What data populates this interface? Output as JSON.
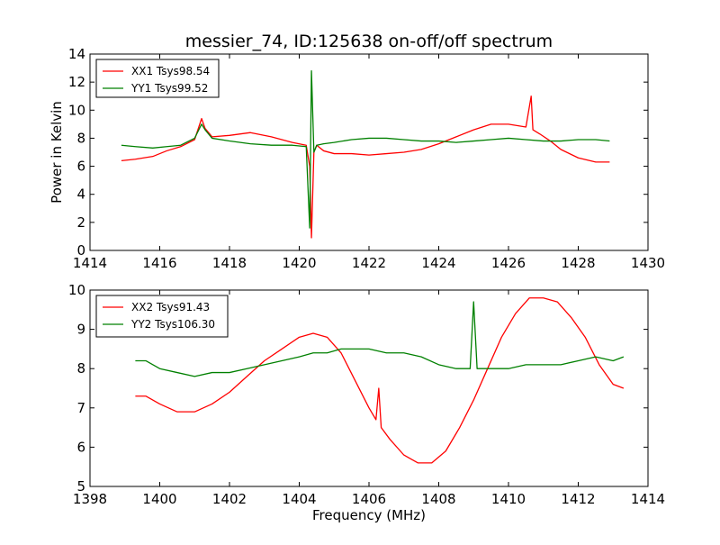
{
  "chart_data": [
    {
      "type": "line",
      "title": "messier_74, ID:125638 on-off/off spectrum",
      "xlabel": "",
      "ylabel": "Power in Kelvin",
      "xlim": [
        1414,
        1430
      ],
      "ylim": [
        0,
        14
      ],
      "xticks": [
        1414,
        1416,
        1418,
        1420,
        1422,
        1424,
        1426,
        1428,
        1430
      ],
      "yticks": [
        0,
        2,
        4,
        6,
        8,
        10,
        12,
        14
      ],
      "grid": false,
      "legend": "top-left",
      "series": [
        {
          "name": "XX1 Tsys98.54",
          "color": "#ff0000",
          "x": [
            1414.9,
            1415.3,
            1415.8,
            1416.2,
            1416.6,
            1417.0,
            1417.2,
            1417.3,
            1417.5,
            1418.0,
            1418.6,
            1419.2,
            1419.8,
            1420.2,
            1420.3,
            1420.35,
            1420.42,
            1420.5,
            1420.7,
            1421.0,
            1421.5,
            1422.0,
            1422.5,
            1423.0,
            1423.5,
            1424.0,
            1424.5,
            1425.0,
            1425.5,
            1426.0,
            1426.5,
            1426.65,
            1426.7,
            1426.9,
            1427.2,
            1427.5,
            1428.0,
            1428.5,
            1428.9
          ],
          "y": [
            6.4,
            6.5,
            6.7,
            7.1,
            7.4,
            7.9,
            9.4,
            8.7,
            8.1,
            8.2,
            8.4,
            8.1,
            7.7,
            7.5,
            6.0,
            0.9,
            7.0,
            7.5,
            7.1,
            6.9,
            6.9,
            6.8,
            6.9,
            7.0,
            7.2,
            7.6,
            8.1,
            8.6,
            9.0,
            9.0,
            8.8,
            11.0,
            8.6,
            8.3,
            7.8,
            7.2,
            6.6,
            6.3,
            6.3
          ]
        },
        {
          "name": "YY1 Tsys99.52",
          "color": "#008000",
          "x": [
            1414.9,
            1415.3,
            1415.8,
            1416.2,
            1416.6,
            1417.0,
            1417.2,
            1417.3,
            1417.5,
            1418.0,
            1418.6,
            1419.2,
            1419.8,
            1420.2,
            1420.3,
            1420.35,
            1420.42,
            1420.5,
            1420.7,
            1421.0,
            1421.5,
            1422.0,
            1422.5,
            1423.0,
            1423.5,
            1424.0,
            1424.5,
            1425.0,
            1425.5,
            1426.0,
            1426.5,
            1427.0,
            1427.5,
            1428.0,
            1428.5,
            1428.9
          ],
          "y": [
            7.5,
            7.4,
            7.3,
            7.4,
            7.5,
            8.0,
            9.0,
            8.6,
            8.0,
            7.8,
            7.6,
            7.5,
            7.5,
            7.4,
            1.6,
            12.8,
            7.0,
            7.5,
            7.6,
            7.7,
            7.9,
            8.0,
            8.0,
            7.9,
            7.8,
            7.8,
            7.7,
            7.8,
            7.9,
            8.0,
            7.9,
            7.8,
            7.8,
            7.9,
            7.9,
            7.8
          ]
        }
      ]
    },
    {
      "type": "line",
      "title": "",
      "xlabel": "Frequency (MHz)",
      "ylabel": "",
      "xlim": [
        1398,
        1414
      ],
      "ylim": [
        5,
        10
      ],
      "xticks": [
        1398,
        1400,
        1402,
        1404,
        1406,
        1408,
        1410,
        1412,
        1414
      ],
      "yticks": [
        5,
        6,
        7,
        8,
        9,
        10
      ],
      "grid": false,
      "legend": "top-left",
      "series": [
        {
          "name": "XX2 Tsys91.43",
          "color": "#ff0000",
          "x": [
            1399.3,
            1399.6,
            1400.0,
            1400.5,
            1401.0,
            1401.5,
            1402.0,
            1402.5,
            1403.0,
            1403.5,
            1404.0,
            1404.4,
            1404.8,
            1405.2,
            1405.6,
            1406.0,
            1406.2,
            1406.28,
            1406.35,
            1406.6,
            1407.0,
            1407.4,
            1407.8,
            1408.2,
            1408.6,
            1409.0,
            1409.4,
            1409.8,
            1410.2,
            1410.6,
            1411.0,
            1411.4,
            1411.8,
            1412.2,
            1412.6,
            1413.0,
            1413.3
          ],
          "y": [
            7.3,
            7.3,
            7.1,
            6.9,
            6.9,
            7.1,
            7.4,
            7.8,
            8.2,
            8.5,
            8.8,
            8.9,
            8.8,
            8.4,
            7.7,
            7.0,
            6.7,
            7.5,
            6.5,
            6.2,
            5.8,
            5.6,
            5.6,
            5.9,
            6.5,
            7.2,
            8.0,
            8.8,
            9.4,
            9.8,
            9.8,
            9.7,
            9.3,
            8.8,
            8.1,
            7.6,
            7.5
          ]
        },
        {
          "name": "YY2 Tsys106.30",
          "color": "#008000",
          "x": [
            1399.3,
            1399.6,
            1400.0,
            1400.5,
            1401.0,
            1401.5,
            1402.0,
            1402.5,
            1403.0,
            1403.5,
            1404.0,
            1404.4,
            1404.8,
            1405.2,
            1405.6,
            1406.0,
            1406.5,
            1407.0,
            1407.5,
            1408.0,
            1408.5,
            1408.9,
            1409.0,
            1409.1,
            1409.5,
            1410.0,
            1410.5,
            1411.0,
            1411.5,
            1412.0,
            1412.5,
            1413.0,
            1413.3
          ],
          "y": [
            8.2,
            8.2,
            8.0,
            7.9,
            7.8,
            7.9,
            7.9,
            8.0,
            8.1,
            8.2,
            8.3,
            8.4,
            8.4,
            8.5,
            8.5,
            8.5,
            8.4,
            8.4,
            8.3,
            8.1,
            8.0,
            8.0,
            9.7,
            8.0,
            8.0,
            8.0,
            8.1,
            8.1,
            8.1,
            8.2,
            8.3,
            8.2,
            8.3
          ]
        }
      ]
    }
  ]
}
